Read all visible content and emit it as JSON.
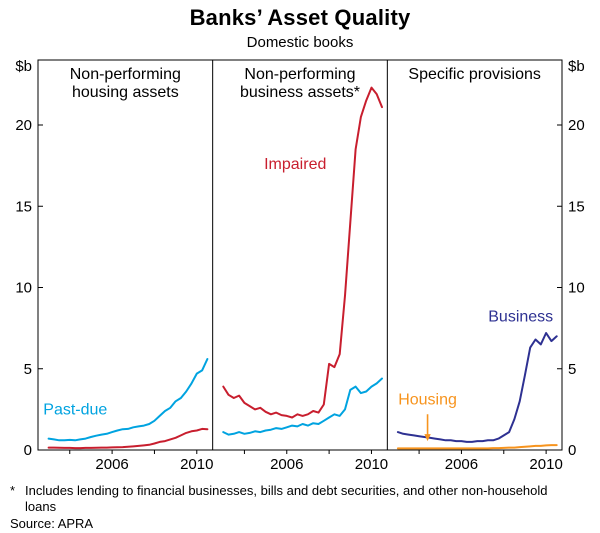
{
  "header": {
    "title": "Banks’ Asset Quality",
    "subtitle": "Domestic books"
  },
  "footer": {
    "footnote_marker": "*",
    "footnote_text": "Includes lending to financial businesses, bills and debt securities, and other non-household loans",
    "source": "Source: APRA"
  },
  "chart_data": {
    "type": "line",
    "title": "Banks’ Asset Quality",
    "subtitle": "Domestic books",
    "unit_label": "$b",
    "ylim": [
      0,
      24
    ],
    "yticks": [
      0,
      5,
      10,
      15,
      20
    ],
    "xlim": [
      2002.5,
      2010.75
    ],
    "x_minor_ticks": [
      2004,
      2006,
      2008,
      2010
    ],
    "x_tick_labels": [
      {
        "x": 2006,
        "label": "2006"
      },
      {
        "x": 2010,
        "label": "2010"
      }
    ],
    "x_quarterly": [
      2003.0,
      2003.25,
      2003.5,
      2003.75,
      2004.0,
      2004.25,
      2004.5,
      2004.75,
      2005.0,
      2005.25,
      2005.5,
      2005.75,
      2006.0,
      2006.25,
      2006.5,
      2006.75,
      2007.0,
      2007.25,
      2007.5,
      2007.75,
      2008.0,
      2008.25,
      2008.5,
      2008.75,
      2009.0,
      2009.25,
      2009.5,
      2009.75,
      2010.0,
      2010.25,
      2010.5
    ],
    "colors": {
      "past_due": "#00A3E0",
      "impaired": "#C81E2E",
      "business": "#2E3192",
      "housing": "#F7941E",
      "axis": "#000000"
    },
    "panels": [
      {
        "title_lines": [
          "Non-performing",
          "housing assets"
        ],
        "series": [
          {
            "name": "Past-due",
            "color_key": "past_due",
            "values": [
              0.7,
              0.65,
              0.6,
              0.6,
              0.62,
              0.6,
              0.65,
              0.7,
              0.8,
              0.88,
              0.95,
              1.0,
              1.1,
              1.2,
              1.28,
              1.3,
              1.4,
              1.45,
              1.5,
              1.6,
              1.8,
              2.1,
              2.4,
              2.6,
              3.0,
              3.2,
              3.6,
              4.1,
              4.7,
              4.9,
              5.6
            ]
          },
          {
            "name": "Impaired",
            "color_key": "impaired",
            "values": [
              0.15,
              0.15,
              0.14,
              0.13,
              0.13,
              0.12,
              0.12,
              0.13,
              0.13,
              0.14,
              0.15,
              0.15,
              0.16,
              0.17,
              0.18,
              0.2,
              0.22,
              0.25,
              0.28,
              0.32,
              0.4,
              0.5,
              0.55,
              0.65,
              0.75,
              0.9,
              1.05,
              1.15,
              1.2,
              1.3,
              1.28
            ]
          }
        ],
        "annotations": [
          {
            "type": "label",
            "text": "Past-due",
            "color_key": "past_due",
            "x": 2002.75,
            "y": 2.2,
            "anchor": "start"
          }
        ]
      },
      {
        "title_lines": [
          "Non-performing",
          "business assets*"
        ],
        "series": [
          {
            "name": "Impaired",
            "color_key": "impaired",
            "values": [
              3.9,
              3.4,
              3.2,
              3.35,
              2.9,
              2.7,
              2.5,
              2.6,
              2.35,
              2.2,
              2.3,
              2.15,
              2.1,
              2.0,
              2.2,
              2.1,
              2.2,
              2.4,
              2.3,
              2.8,
              5.3,
              5.1,
              5.9,
              9.5,
              14.0,
              18.5,
              20.5,
              21.5,
              22.3,
              21.9,
              21.1
            ]
          },
          {
            "name": "Past-due",
            "color_key": "past_due",
            "values": [
              1.1,
              0.95,
              1.0,
              1.1,
              1.0,
              1.05,
              1.15,
              1.1,
              1.2,
              1.25,
              1.35,
              1.3,
              1.4,
              1.5,
              1.45,
              1.6,
              1.5,
              1.65,
              1.6,
              1.8,
              2.0,
              2.2,
              2.1,
              2.5,
              3.7,
              3.9,
              3.5,
              3.6,
              3.9,
              4.1,
              4.4
            ]
          }
        ],
        "annotations": [
          {
            "type": "label",
            "text": "Impaired",
            "color_key": "impaired",
            "x": 2006.4,
            "y": 17.3,
            "anchor": "middle"
          }
        ]
      },
      {
        "title_lines": [
          "Specific provisions"
        ],
        "series": [
          {
            "name": "Business",
            "color_key": "business",
            "values": [
              1.1,
              1.0,
              0.95,
              0.9,
              0.85,
              0.8,
              0.75,
              0.7,
              0.65,
              0.6,
              0.6,
              0.55,
              0.55,
              0.5,
              0.5,
              0.55,
              0.55,
              0.6,
              0.6,
              0.7,
              0.9,
              1.1,
              1.9,
              3.0,
              4.6,
              6.3,
              6.8,
              6.5,
              7.2,
              6.7,
              7.0
            ]
          },
          {
            "name": "Housing",
            "color_key": "housing",
            "values": [
              0.1,
              0.1,
              0.1,
              0.1,
              0.1,
              0.1,
              0.1,
              0.1,
              0.1,
              0.1,
              0.1,
              0.1,
              0.1,
              0.1,
              0.1,
              0.1,
              0.1,
              0.1,
              0.12,
              0.12,
              0.13,
              0.15,
              0.15,
              0.18,
              0.2,
              0.22,
              0.25,
              0.25,
              0.28,
              0.3,
              0.3
            ]
          }
        ],
        "annotations": [
          {
            "type": "label",
            "text": "Business",
            "color_key": "business",
            "x": 2008.8,
            "y": 7.9,
            "anchor": "middle"
          },
          {
            "type": "label",
            "text": "Housing",
            "color_key": "housing",
            "x": 2004.4,
            "y": 2.8,
            "anchor": "middle"
          },
          {
            "type": "arrow",
            "color_key": "housing",
            "x": 2004.4,
            "y_from": 2.2,
            "y_to": 0.55
          }
        ]
      }
    ]
  }
}
